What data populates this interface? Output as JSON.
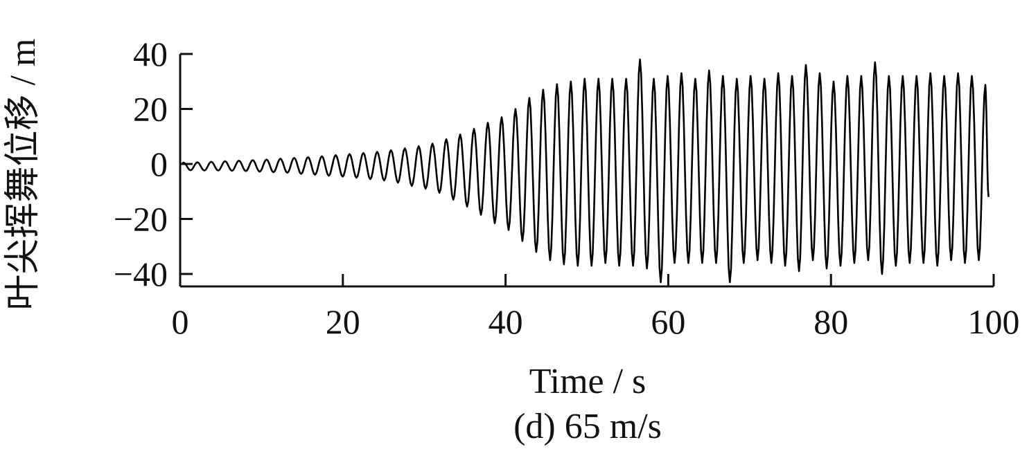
{
  "chart_data": {
    "type": "line",
    "caption": "(d) 65 m/s",
    "xlabel": "Time / s",
    "ylabel": "叶尖挥舞位移 / m",
    "xlim": [
      0,
      100
    ],
    "ylim": [
      -45,
      40
    ],
    "x_ticks": [
      {
        "value": 0,
        "label": "0"
      },
      {
        "value": 20,
        "label": "20"
      },
      {
        "value": 40,
        "label": "40"
      },
      {
        "value": 60,
        "label": "60"
      },
      {
        "value": 80,
        "label": "80"
      },
      {
        "value": 100,
        "label": "100"
      }
    ],
    "y_ticks": [
      {
        "value": 40,
        "label": "40"
      },
      {
        "value": 20,
        "label": "20"
      },
      {
        "value": 0,
        "label": "0"
      },
      {
        "value": -20,
        "label": "−20"
      },
      {
        "value": -40,
        "label": "−40"
      }
    ],
    "series": [
      {
        "color": "#000000",
        "period": 1.706,
        "peaks": [
          [
            1.7,
            0.5,
            -2.3
          ],
          [
            3.4,
            0.6,
            -2.4
          ],
          [
            5.1,
            0.8,
            -2.4
          ],
          [
            6.8,
            1.0,
            -2.5
          ],
          [
            8.5,
            1.2,
            -2.6
          ],
          [
            10.2,
            1.4,
            -2.8
          ],
          [
            11.9,
            1.6,
            -3.0
          ],
          [
            13.6,
            1.9,
            -3.2
          ],
          [
            15.3,
            2.2,
            -3.6
          ],
          [
            17.0,
            2.5,
            -3.9
          ],
          [
            18.7,
            2.8,
            -4.3
          ],
          [
            20.4,
            3.2,
            -4.6
          ],
          [
            22.1,
            3.6,
            -5.0
          ],
          [
            23.8,
            4.0,
            -5.5
          ],
          [
            25.5,
            4.4,
            -6.0
          ],
          [
            27.2,
            5.0,
            -6.8
          ],
          [
            28.9,
            5.7,
            -8.0
          ],
          [
            30.6,
            6.5,
            -9.0
          ],
          [
            32.3,
            7.4,
            -10.5
          ],
          [
            34.0,
            9.0,
            -13.0
          ],
          [
            35.7,
            10.7,
            -15.5
          ],
          [
            37.4,
            12.8,
            -18.5
          ],
          [
            39.1,
            15.0,
            -21.5
          ],
          [
            40.8,
            17.0,
            -24.0
          ],
          [
            42.5,
            20.0,
            -28.0
          ],
          [
            44.2,
            24.0,
            -32.0
          ],
          [
            45.9,
            27.0,
            -35.0
          ],
          [
            47.6,
            29.0,
            -36.5
          ],
          [
            49.3,
            30.0,
            -37.0
          ],
          [
            51.0,
            31.0,
            -37.0
          ],
          [
            52.7,
            31.0,
            -36.0
          ],
          [
            54.4,
            31.0,
            -37.0
          ],
          [
            56.1,
            31.0,
            -37.0
          ],
          [
            57.8,
            38.0,
            -38.0
          ],
          [
            59.5,
            31.0,
            -43.0
          ],
          [
            61.2,
            32.0,
            -36.0
          ],
          [
            62.9,
            33.0,
            -36.0
          ],
          [
            64.6,
            31.0,
            -36.0
          ],
          [
            66.3,
            34.0,
            -36.0
          ],
          [
            68.0,
            32.0,
            -43.0
          ],
          [
            69.7,
            31.0,
            -36.0
          ],
          [
            71.4,
            32.0,
            -35.0
          ],
          [
            73.1,
            31.0,
            -36.0
          ],
          [
            74.8,
            33.0,
            -37.0
          ],
          [
            76.5,
            32.0,
            -39.0
          ],
          [
            78.2,
            36.0,
            -35.0
          ],
          [
            79.9,
            33.0,
            -38.0
          ],
          [
            81.6,
            30.0,
            -37.0
          ],
          [
            83.3,
            32.0,
            -36.0
          ],
          [
            85.0,
            32.0,
            -35.0
          ],
          [
            86.7,
            37.0,
            -40.0
          ],
          [
            88.4,
            32.0,
            -37.0
          ],
          [
            90.1,
            32.0,
            -36.0
          ],
          [
            91.8,
            32.0,
            -36.0
          ],
          [
            93.5,
            33.0,
            -37.0
          ],
          [
            95.2,
            32.0,
            -35.0
          ],
          [
            96.9,
            33.0,
            -36.0
          ],
          [
            98.6,
            32.0,
            -35.0
          ]
        ],
        "end_value": -12
      }
    ]
  }
}
